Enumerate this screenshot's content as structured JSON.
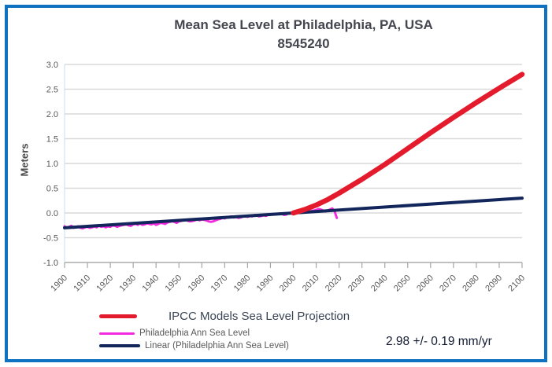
{
  "window": {
    "border_color": "#0e72c1",
    "background": "#ffffff"
  },
  "colors": {
    "grid": "#d9d9d9",
    "axis": "#a6a6a6",
    "y_axis_line": "#c9ddf0",
    "tick_label": "#595959",
    "title_text": "#44474f",
    "legend_primary_text": "#394455",
    "legend_secondary_text": "#595959",
    "annotation_text": "#131c33"
  },
  "annotation": "2.98 +/- 0.19 mm/yr",
  "chart_data": {
    "type": "line",
    "title": "Mean Sea Level at Philadelphia, PA, USA",
    "subtitle": "8545240",
    "ylabel": "Meters",
    "xlabel": "",
    "ylim": [
      -1.0,
      3.0
    ],
    "xlim": [
      1900,
      2100
    ],
    "grid": "horizontal",
    "legend_position": "bottom-left",
    "y_ticks": [
      "3.0",
      "2.5",
      "2.0",
      "1.5",
      "1.0",
      "0.5",
      "0.0",
      "-0.5",
      "-1.0"
    ],
    "x_ticks": [
      1900,
      1910,
      1920,
      1930,
      1940,
      1950,
      1960,
      1970,
      1980,
      1990,
      2000,
      2010,
      2020,
      2030,
      2040,
      2050,
      2060,
      2070,
      2080,
      2090,
      2100
    ],
    "series": [
      {
        "name": "IPCC Models Sea Level Projection",
        "color": "#e31b2c",
        "width": 6.5,
        "z": 3,
        "points": [
          [
            2000,
            0.0
          ],
          [
            2005,
            0.07
          ],
          [
            2010,
            0.16
          ],
          [
            2015,
            0.27
          ],
          [
            2020,
            0.4
          ],
          [
            2030,
            0.68
          ],
          [
            2040,
            0.98
          ],
          [
            2050,
            1.3
          ],
          [
            2060,
            1.62
          ],
          [
            2070,
            1.93
          ],
          [
            2080,
            2.23
          ],
          [
            2090,
            2.52
          ],
          [
            2100,
            2.8
          ]
        ]
      },
      {
        "name": "Philadelphia Ann Sea Level",
        "color": "#f42ae0",
        "width": 3,
        "z": 1,
        "x_start": 1900,
        "x_step": 1,
        "values": [
          -0.27,
          -0.3,
          -0.28,
          -0.26,
          -0.3,
          -0.29,
          -0.27,
          -0.3,
          -0.31,
          -0.29,
          -0.28,
          -0.3,
          -0.29,
          -0.27,
          -0.29,
          -0.26,
          -0.28,
          -0.27,
          -0.29,
          -0.27,
          -0.28,
          -0.25,
          -0.26,
          -0.28,
          -0.26,
          -0.25,
          -0.24,
          -0.23,
          -0.25,
          -0.26,
          -0.23,
          -0.22,
          -0.24,
          -0.21,
          -0.24,
          -0.23,
          -0.21,
          -0.22,
          -0.23,
          -0.21,
          -0.24,
          -0.22,
          -0.2,
          -0.21,
          -0.22,
          -0.19,
          -0.18,
          -0.17,
          -0.18,
          -0.2,
          -0.17,
          -0.16,
          -0.15,
          -0.14,
          -0.16,
          -0.17,
          -0.16,
          -0.15,
          -0.13,
          -0.15,
          -0.13,
          -0.14,
          -0.15,
          -0.17,
          -0.18,
          -0.17,
          -0.15,
          -0.13,
          -0.12,
          -0.1,
          -0.11,
          -0.09,
          -0.08,
          -0.07,
          -0.09,
          -0.08,
          -0.1,
          -0.09,
          -0.07,
          -0.06,
          -0.08,
          -0.06,
          -0.07,
          -0.04,
          -0.05,
          -0.07,
          -0.06,
          -0.05,
          -0.06,
          -0.04,
          -0.03,
          -0.02,
          -0.03,
          -0.02,
          -0.01,
          -0.02,
          -0.04,
          -0.03,
          0.0,
          -0.01,
          0.01,
          0.02,
          0.03,
          0.05,
          0.03,
          0.04,
          0.05,
          0.02,
          0.04,
          0.05,
          0.06,
          0.08,
          0.07,
          0.05,
          0.03,
          0.05,
          0.07,
          0.09,
          0.04,
          -0.1
        ]
      },
      {
        "name": "Linear (Philadelphia Ann Sea Level)",
        "color": "#12265c",
        "width": 4,
        "z": 2,
        "points": [
          [
            1900,
            -0.3
          ],
          [
            2100,
            0.3
          ]
        ]
      }
    ]
  }
}
